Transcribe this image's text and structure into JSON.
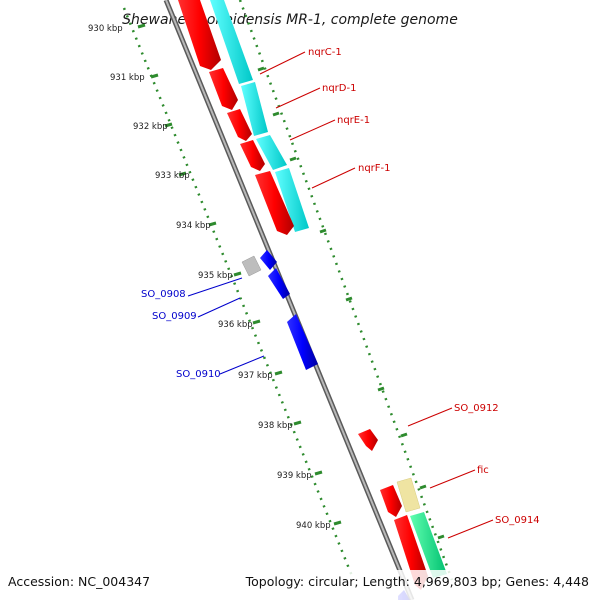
{
  "title": "Shewanella oneidensis MR-1, complete genome",
  "footer": {
    "accession": "Accession: NC_004347",
    "topology": "Topology: circular; Length: 4,969,803 bp; Genes: 4,448"
  },
  "ticks": [
    "930 kbp",
    "931 kbp",
    "932 kbp",
    "933 kbp",
    "934 kbp",
    "935 kbp",
    "936 kbp",
    "937 kbp",
    "938 kbp",
    "939 kbp",
    "940 kbp"
  ],
  "genes_right": [
    {
      "label": "nqrC-1",
      "color": "#cc0000"
    },
    {
      "label": "nqrD-1",
      "color": "#cc0000"
    },
    {
      "label": "nqrE-1",
      "color": "#cc0000"
    },
    {
      "label": "nqrF-1",
      "color": "#cc0000"
    },
    {
      "label": "SO_0912",
      "color": "#cc0000"
    },
    {
      "label": "fic",
      "color": "#cc0000"
    },
    {
      "label": "SO_0914",
      "color": "#cc0000"
    }
  ],
  "genes_left": [
    {
      "label": "SO_0908",
      "color": "#0000cc"
    },
    {
      "label": "SO_0909",
      "color": "#0000cc"
    },
    {
      "label": "SO_0910",
      "color": "#0000cc"
    }
  ],
  "colors": {
    "forward_cds": "#ee0000",
    "reverse_cds": "#0000ee",
    "rna_cyan": "#00e0e0",
    "rna_green": "#00e08a",
    "misc_yellow": "#f0e6a0",
    "misc_gray": "#bbbbbb",
    "backbone": "#888888",
    "tick_green": "#2e8b2e"
  }
}
